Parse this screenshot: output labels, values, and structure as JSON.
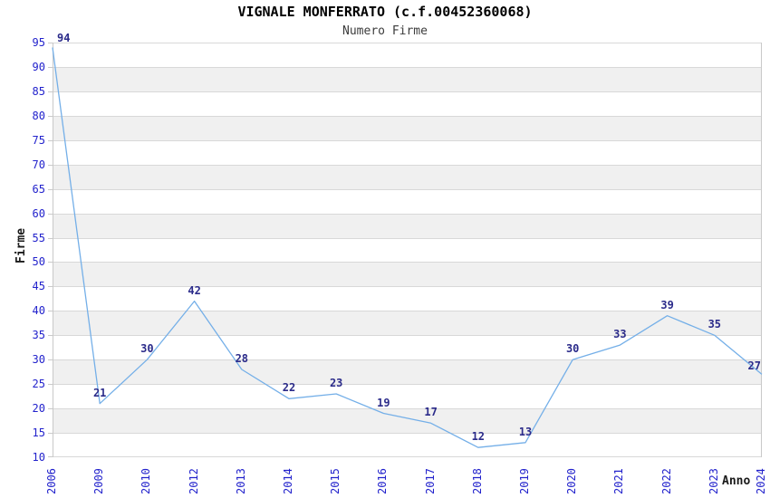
{
  "chart_data": {
    "type": "line",
    "title": "VIGNALE MONFERRATO (c.f.00452360068)",
    "subtitle": "Numero Firme",
    "xlabel": "Anno",
    "ylabel": "Firme",
    "categories": [
      "2006",
      "2009",
      "2010",
      "2012",
      "2013",
      "2014",
      "2015",
      "2016",
      "2017",
      "2018",
      "2019",
      "2020",
      "2021",
      "2022",
      "2023",
      "2024"
    ],
    "values": [
      94,
      21,
      30,
      42,
      28,
      22,
      23,
      19,
      17,
      12,
      13,
      30,
      33,
      39,
      35,
      27
    ],
    "ylim": [
      10,
      95
    ],
    "ytick_step": 5,
    "grid": true,
    "legend_position": "none",
    "band_fill": "alternating gray bands between y gridlines, white top band",
    "colors": {
      "line": "#74afe8",
      "tick_labels": "#2222cc",
      "data_labels": "#2b2b8a",
      "band": "#f0f0f0",
      "grid": "#d8d8d8",
      "border": "#c9c9c9",
      "title": "#000000",
      "subtitle": "#3c3c3c",
      "axis_titles": "#1a1a1a"
    }
  }
}
